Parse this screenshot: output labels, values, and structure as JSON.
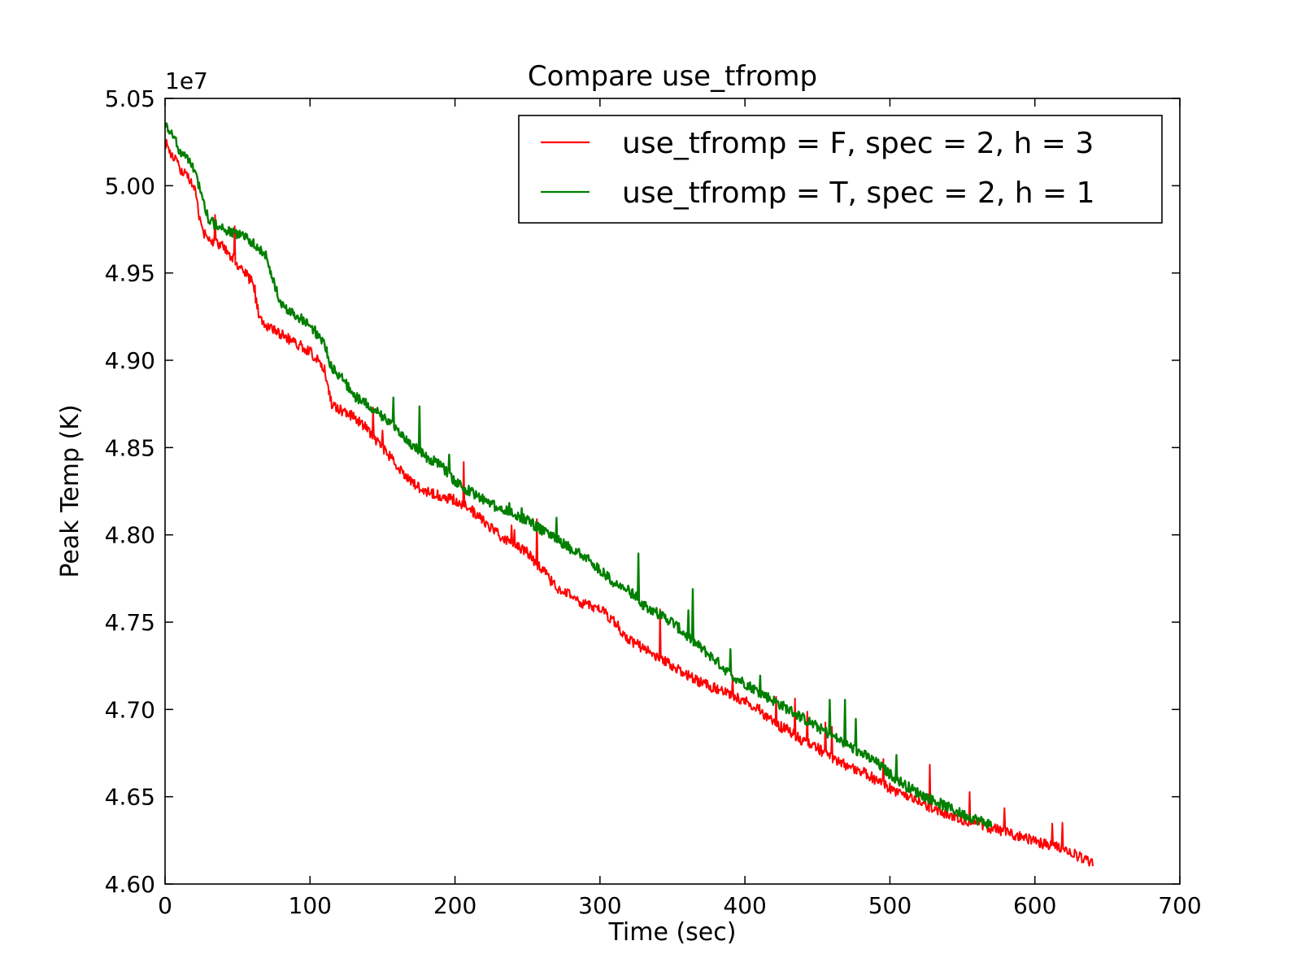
{
  "chart_data": {
    "type": "line",
    "title": "Compare use_tfromp",
    "xlabel": "Time (sec)",
    "ylabel": "Peak Temp (K)",
    "y_offset_label": "1e7",
    "xlim": [
      0,
      700
    ],
    "ylim": [
      4.6,
      5.05
    ],
    "x_ticks": [
      "0",
      "100",
      "200",
      "300",
      "400",
      "500",
      "600",
      "700"
    ],
    "y_ticks": [
      "4.60",
      "4.65",
      "4.70",
      "4.75",
      "4.80",
      "4.85",
      "4.90",
      "4.95",
      "5.00",
      "5.05"
    ],
    "legend_position": "top-right",
    "grid": false,
    "series": [
      {
        "name": "use_tfromp = F, spec = 2, h = 3",
        "color": "#ff0000",
        "x": [
          0,
          10,
          20,
          25,
          30,
          40,
          50,
          60,
          65,
          70,
          80,
          90,
          100,
          110,
          115,
          120,
          130,
          140,
          150,
          160,
          170,
          180,
          190,
          200,
          210,
          220,
          230,
          240,
          250,
          260,
          270,
          280,
          290,
          300,
          310,
          320,
          330,
          340,
          350,
          360,
          370,
          380,
          390,
          400,
          410,
          420,
          430,
          440,
          450,
          460,
          470,
          480,
          490,
          500,
          510,
          520,
          530,
          540,
          550,
          560,
          570,
          580,
          590,
          600,
          610,
          620,
          630,
          640
        ],
        "y": [
          5.025,
          5.01,
          5.0,
          4.975,
          4.97,
          4.965,
          4.955,
          4.945,
          4.925,
          4.92,
          4.915,
          4.91,
          4.905,
          4.895,
          4.875,
          4.872,
          4.868,
          4.86,
          4.85,
          4.84,
          4.83,
          4.825,
          4.822,
          4.82,
          4.815,
          4.808,
          4.8,
          4.795,
          4.79,
          4.78,
          4.77,
          4.765,
          4.76,
          4.758,
          4.75,
          4.74,
          4.735,
          4.73,
          4.725,
          4.72,
          4.715,
          4.712,
          4.708,
          4.705,
          4.7,
          4.692,
          4.688,
          4.682,
          4.678,
          4.672,
          4.668,
          4.665,
          4.66,
          4.655,
          4.65,
          4.647,
          4.643,
          4.64,
          4.637,
          4.635,
          4.632,
          4.63,
          4.627,
          4.625,
          4.622,
          4.62,
          4.616,
          4.612
        ]
      },
      {
        "name": "use_tfromp = T, spec = 2, h = 1",
        "color": "#007f00",
        "x": [
          0,
          5,
          10,
          20,
          25,
          30,
          40,
          50,
          60,
          70,
          75,
          80,
          90,
          100,
          110,
          115,
          120,
          130,
          140,
          150,
          160,
          170,
          180,
          190,
          200,
          210,
          220,
          230,
          240,
          250,
          260,
          270,
          280,
          290,
          300,
          310,
          320,
          330,
          340,
          350,
          360,
          370,
          380,
          390,
          400,
          410,
          420,
          430,
          440,
          450,
          460,
          470,
          480,
          490,
          500,
          510,
          520,
          530,
          540,
          550,
          560,
          570
        ],
        "y": [
          5.035,
          5.03,
          5.02,
          5.01,
          4.995,
          4.98,
          4.975,
          4.972,
          4.968,
          4.96,
          4.945,
          4.932,
          4.926,
          4.92,
          4.91,
          4.895,
          4.892,
          4.88,
          4.874,
          4.868,
          4.86,
          4.852,
          4.845,
          4.84,
          4.83,
          4.825,
          4.82,
          4.815,
          4.812,
          4.808,
          4.803,
          4.798,
          4.792,
          4.788,
          4.78,
          4.772,
          4.768,
          4.76,
          4.755,
          4.75,
          4.742,
          4.735,
          4.728,
          4.72,
          4.715,
          4.71,
          4.705,
          4.7,
          4.695,
          4.69,
          4.685,
          4.68,
          4.675,
          4.67,
          4.663,
          4.657,
          4.652,
          4.648,
          4.644,
          4.64,
          4.637,
          4.634
        ]
      }
    ]
  }
}
